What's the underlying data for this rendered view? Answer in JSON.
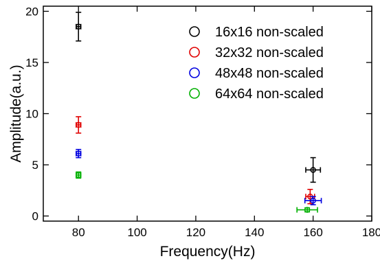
{
  "chart_data": {
    "type": "scatter",
    "xlabel": "Frequency(Hz)",
    "ylabel": "Amplitude(a.u.)",
    "xlim": [
      68,
      180
    ],
    "ylim": [
      -0.5,
      20.5
    ],
    "x_ticks": [
      80,
      100,
      120,
      140,
      160,
      180
    ],
    "y_ticks": [
      0,
      5,
      10,
      15,
      20
    ],
    "grid": false,
    "legend_position": "top-right",
    "marker": "open-circle",
    "series": [
      {
        "name": "16x16 non-scaled",
        "color": "#000000",
        "points": [
          {
            "x": 80,
            "y": 18.5,
            "yerr": 1.4,
            "xerr": 0.8
          },
          {
            "x": 160,
            "y": 4.5,
            "yerr": 1.2,
            "xerr": 2.5
          }
        ]
      },
      {
        "name": "32x32 non-scaled",
        "color": "#e00000",
        "points": [
          {
            "x": 80,
            "y": 8.9,
            "yerr": 0.8,
            "xerr": 0.8
          },
          {
            "x": 159,
            "y": 1.9,
            "yerr": 0.7,
            "xerr": 1.5
          }
        ]
      },
      {
        "name": "48x48 non-scaled",
        "color": "#0000e0",
        "points": [
          {
            "x": 80,
            "y": 6.1,
            "yerr": 0.4,
            "xerr": 0.8
          },
          {
            "x": 160,
            "y": 1.5,
            "yerr": 0.4,
            "xerr": 2.8
          }
        ]
      },
      {
        "name": "64x64 non-scaled",
        "color": "#00b000",
        "points": [
          {
            "x": 80,
            "y": 4.0,
            "yerr": 0.3,
            "xerr": 0.8
          },
          {
            "x": 158,
            "y": 0.6,
            "yerr": 0.2,
            "xerr": 3.5
          }
        ]
      }
    ]
  }
}
